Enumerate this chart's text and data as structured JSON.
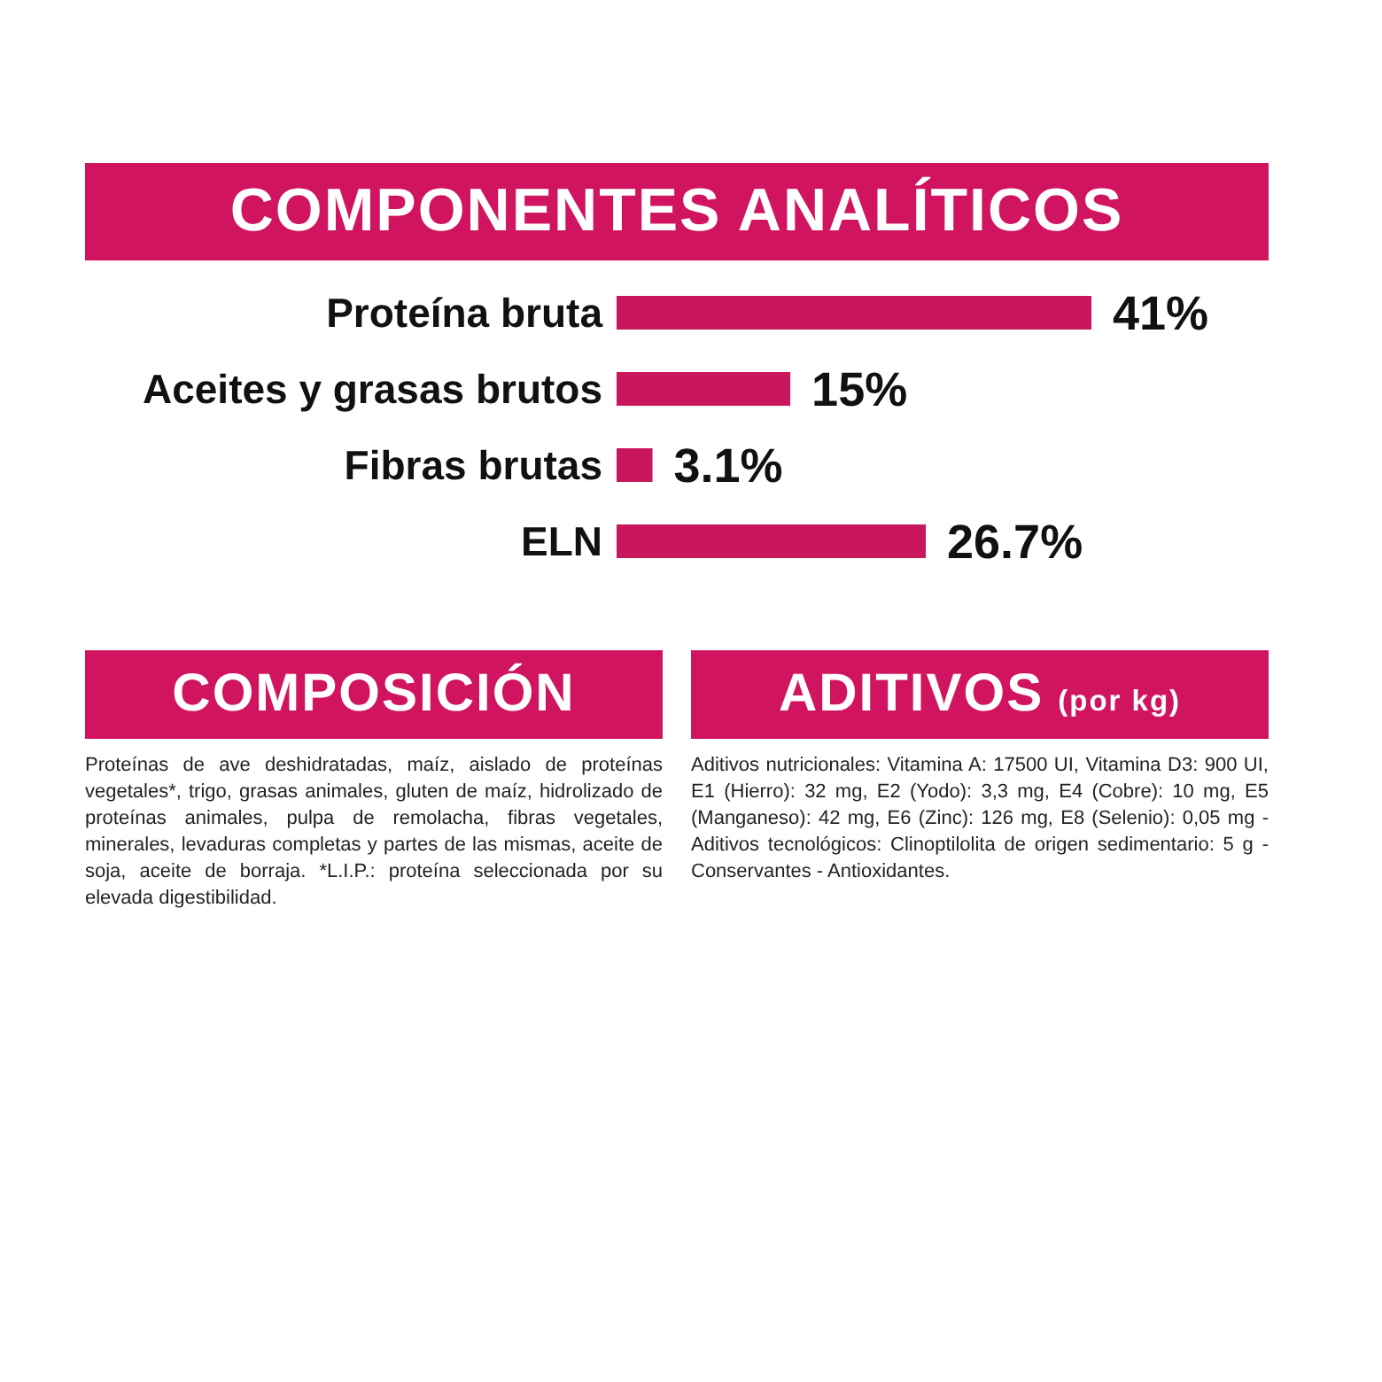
{
  "chart_data": [
    {
      "type": "bar",
      "title": "COMPONENTES ANALÍTICOS",
      "orientation": "horizontal",
      "categories": [
        "Proteína bruta",
        "Aceites y grasas brutos",
        "Fibras brutas",
        "ELN"
      ],
      "values": [
        41,
        15,
        3.1,
        26.7
      ],
      "value_labels": [
        "41%",
        "15%",
        "3.1%",
        "26.7%"
      ],
      "color": "#c8175d"
    },
    {
      "type": "other",
      "title": "COMPOSICIÓN",
      "annotations": [
        "Proteínas de ave deshidratadas, maíz, aislado de proteínas vegetales*, trigo, grasas animales, gluten de maíz, hidrolizado de proteínas animales, pulpa de remolacha, fibras vegetales, minerales, levaduras completas y partes de las mismas, aceite de soja, aceite de borraja. *L.I.P.: proteína seleccionada por su elevada digestibilidad."
      ]
    },
    {
      "type": "other",
      "title": "ADITIVOS",
      "subtitle": "(por kg)",
      "annotations": [
        "Aditivos nutricionales: Vitamina A: 17500 UI, Vitamina D3: 900 UI, E1 (Hierro): 32 mg, E2 (Yodo): 3,3 mg, E4 (Cobre): 10 mg, E5 (Manganeso): 42 mg, E6 (Zinc): 126 mg, E8 (Selenio): 0,05 mg - Aditivos tecnológicos: Clinoptilolita de origen sedimentario: 5 g - Conservantes - Antioxidantes."
      ]
    }
  ]
}
